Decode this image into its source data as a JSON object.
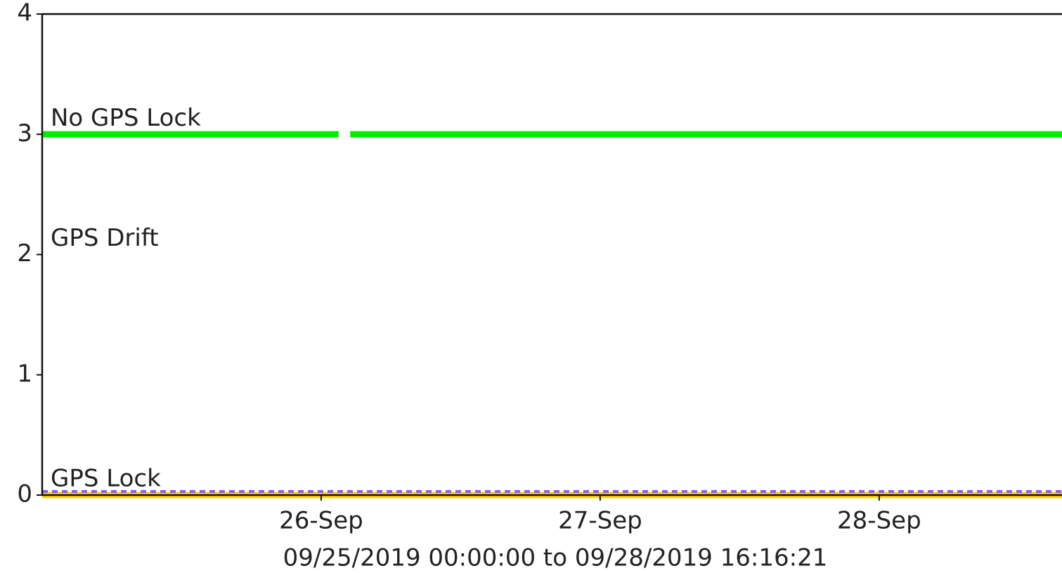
{
  "chart_data": {
    "type": "line",
    "xlabel": "09/25/2019 00:00:00 to 09/28/2019 16:16:21",
    "xlim": [
      "2019-09-25T00:00:00",
      "2019-09-28T16:16:21"
    ],
    "xticks": [
      {
        "value": "2019-09-26T00:00:00",
        "label": "26-Sep"
      },
      {
        "value": "2019-09-27T00:00:00",
        "label": "27-Sep"
      },
      {
        "value": "2019-09-28T00:00:00",
        "label": "28-Sep"
      }
    ],
    "ylim": [
      0,
      4
    ],
    "yticks": [
      0,
      1,
      2,
      3,
      4
    ],
    "annotations": [
      {
        "text": "No GPS Lock",
        "y": 3
      },
      {
        "text": "GPS Drift",
        "y": 2
      },
      {
        "text": "GPS Lock",
        "y": 0
      }
    ],
    "series": [
      {
        "color": "#00ee00",
        "x": [
          "2019-09-25T00:00:00",
          "2019-09-26T01:30:00",
          "2019-09-26T02:00:00",
          "2019-09-26T02:30:00",
          "2019-09-28T16:16:21"
        ],
        "values": [
          3,
          3,
          null,
          3,
          3
        ]
      },
      {
        "color": "#ffd700",
        "x": [
          "2019-09-25T00:00:00",
          "2019-09-28T16:16:21"
        ],
        "values": [
          0,
          0
        ]
      },
      {
        "color": "#8a5cf6",
        "dashed": true,
        "x": [
          "2019-09-25T00:00:00",
          "2019-09-28T16:16:21"
        ],
        "values": [
          0.03,
          0.03
        ]
      }
    ]
  }
}
